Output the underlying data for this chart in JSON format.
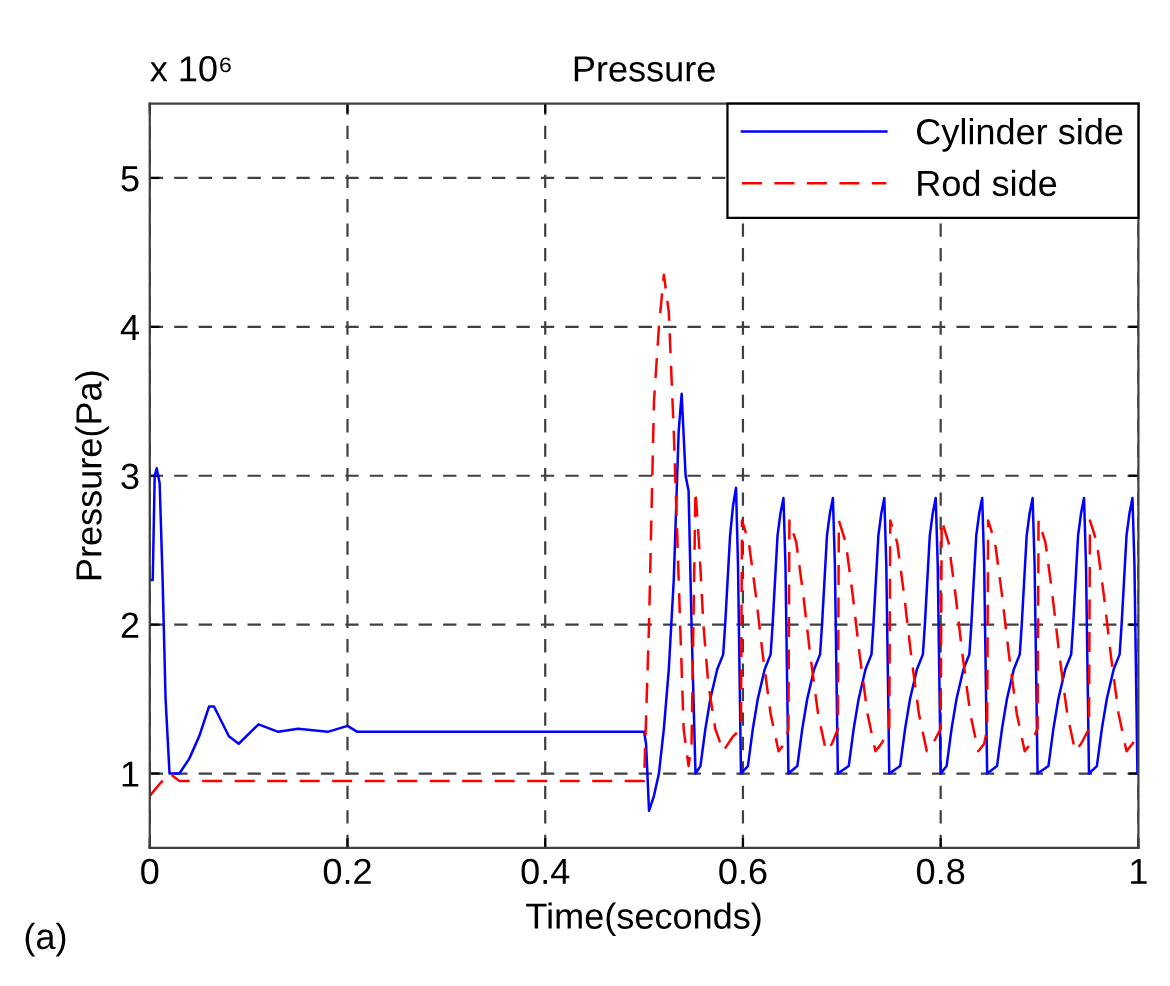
{
  "chart_data": {
    "type": "line",
    "title": "Pressure",
    "xlabel": "Time(seconds)",
    "ylabel": "Pressure(Pa)",
    "annotations": [
      "x 10⁶",
      "(a)"
    ],
    "xlim": [
      0,
      1
    ],
    "xticks": [
      0,
      0.2,
      0.4,
      0.6,
      0.8,
      1
    ],
    "ylim": [
      0.5,
      5.5
    ],
    "yticks": [
      1,
      2,
      3,
      4,
      5
    ],
    "grid": true,
    "legend": "top right",
    "series": [
      {
        "name": "Cylinder side",
        "color": "#0000ff",
        "line_style": "solid",
        "x": [
          0,
          0.003,
          0.005,
          0.007,
          0.01,
          0.013,
          0.016,
          0.02,
          0.03,
          0.04,
          0.05,
          0.06,
          0.065,
          0.08,
          0.09,
          0.11,
          0.13,
          0.15,
          0.18,
          0.2,
          0.21,
          0.5,
          0.502,
          0.505,
          0.51,
          0.515,
          0.52,
          0.525,
          0.53,
          0.535,
          0.538,
          0.542,
          0.545,
          0.548,
          0.552,
          0.557,
          0.562,
          0.567,
          0.574,
          0.58,
          0.582,
          0.587,
          0.59,
          0.593,
          0.595,
          0.598,
          0.605,
          0.61,
          0.615,
          0.622,
          0.628,
          0.63,
          0.635,
          0.638,
          0.641,
          0.643,
          0.646,
          0.655,
          0.66,
          0.665,
          0.672,
          0.678,
          0.68,
          0.685,
          0.688,
          0.691,
          0.693,
          0.696,
          0.707,
          0.712,
          0.717,
          0.724,
          0.73,
          0.732,
          0.737,
          0.74,
          0.743,
          0.745,
          0.748,
          0.759,
          0.764,
          0.769,
          0.776,
          0.782,
          0.784,
          0.789,
          0.792,
          0.795,
          0.797,
          0.8,
          0.806,
          0.811,
          0.816,
          0.823,
          0.829,
          0.831,
          0.836,
          0.839,
          0.842,
          0.844,
          0.847,
          0.857,
          0.862,
          0.867,
          0.874,
          0.88,
          0.882,
          0.887,
          0.89,
          0.893,
          0.895,
          0.898,
          0.909,
          0.914,
          0.919,
          0.926,
          0.932,
          0.934,
          0.939,
          0.942,
          0.945,
          0.947,
          0.95,
          0.958,
          0.963,
          0.968,
          0.975,
          0.981,
          0.983,
          0.988,
          0.991,
          0.994,
          0.996,
          0.999
        ],
        "values": [
          2.3,
          2.3,
          3.0,
          3.05,
          2.95,
          2.3,
          1.5,
          1.0,
          1.0,
          1.1,
          1.25,
          1.45,
          1.45,
          1.25,
          1.2,
          1.33,
          1.28,
          1.3,
          1.28,
          1.32,
          1.28,
          1.28,
          1.2,
          0.75,
          0.85,
          1.0,
          1.3,
          1.7,
          2.3,
          3.3,
          3.55,
          3.0,
          2.9,
          2.0,
          1.0,
          1.05,
          1.3,
          1.5,
          1.7,
          1.8,
          2.0,
          2.6,
          2.8,
          2.92,
          2.4,
          1.0,
          1.05,
          1.3,
          1.5,
          1.7,
          1.8,
          2.0,
          2.6,
          2.75,
          2.85,
          2.4,
          1.0,
          1.05,
          1.3,
          1.5,
          1.7,
          1.8,
          2.0,
          2.6,
          2.75,
          2.85,
          2.4,
          1.0,
          1.05,
          1.3,
          1.5,
          1.7,
          1.8,
          2.0,
          2.6,
          2.75,
          2.85,
          2.4,
          1.0,
          1.05,
          1.3,
          1.5,
          1.7,
          1.8,
          2.0,
          2.6,
          2.75,
          2.85,
          2.4,
          1.0,
          1.05,
          1.3,
          1.5,
          1.7,
          1.8,
          2.0,
          2.6,
          2.75,
          2.85,
          2.4,
          1.0,
          1.05,
          1.3,
          1.5,
          1.7,
          1.8,
          2.0,
          2.6,
          2.75,
          2.85,
          2.4,
          1.0,
          1.05,
          1.3,
          1.5,
          1.7,
          1.8,
          2.0,
          2.6,
          2.75,
          2.85,
          2.4,
          1.0,
          1.05,
          1.3,
          1.5,
          1.7,
          1.8,
          2.0,
          2.6,
          2.75,
          2.85,
          2.4,
          1.0
        ]
      },
      {
        "name": "Rod side",
        "color": "#ff0000",
        "line_style": "dashed",
        "x": [
          0,
          0.01,
          0.02,
          0.03,
          0.5,
          0.505,
          0.51,
          0.515,
          0.52,
          0.525,
          0.53,
          0.535,
          0.54,
          0.545,
          0.548,
          0.552,
          0.556,
          0.56,
          0.565,
          0.572,
          0.58,
          0.59,
          0.598,
          0.599,
          0.606,
          0.613,
          0.62,
          0.628,
          0.636,
          0.642,
          0.646,
          0.647,
          0.654,
          0.661,
          0.668,
          0.676,
          0.684,
          0.69,
          0.696,
          0.697,
          0.704,
          0.711,
          0.718,
          0.726,
          0.734,
          0.74,
          0.748,
          0.749,
          0.756,
          0.763,
          0.77,
          0.778,
          0.786,
          0.792,
          0.8,
          0.801,
          0.808,
          0.815,
          0.822,
          0.83,
          0.838,
          0.844,
          0.847,
          0.848,
          0.855,
          0.862,
          0.869,
          0.877,
          0.885,
          0.891,
          0.898,
          0.899,
          0.906,
          0.913,
          0.92,
          0.928,
          0.936,
          0.942,
          0.95,
          0.951,
          0.958,
          0.965,
          0.972,
          0.98,
          0.988,
          0.994,
          0.999
        ],
        "values": [
          0.85,
          0.93,
          1.0,
          0.95,
          0.95,
          2.0,
          3.5,
          4.0,
          4.35,
          4.1,
          3.3,
          2.3,
          1.3,
          1.05,
          1.2,
          2.9,
          2.5,
          2.0,
          1.6,
          1.3,
          1.15,
          1.25,
          1.3,
          2.7,
          2.55,
          2.2,
          1.8,
          1.4,
          1.15,
          1.2,
          1.3,
          2.7,
          2.55,
          2.2,
          1.8,
          1.4,
          1.15,
          1.2,
          1.3,
          2.7,
          2.55,
          2.2,
          1.8,
          1.4,
          1.15,
          1.2,
          1.3,
          2.7,
          2.55,
          2.2,
          1.8,
          1.4,
          1.15,
          1.2,
          1.3,
          2.7,
          2.55,
          2.2,
          1.8,
          1.4,
          1.15,
          1.2,
          1.3,
          2.7,
          2.55,
          2.2,
          1.8,
          1.4,
          1.15,
          1.2,
          1.3,
          2.7,
          2.55,
          2.2,
          1.8,
          1.4,
          1.15,
          1.2,
          1.3,
          2.7,
          2.55,
          2.2,
          1.8,
          1.4,
          1.15,
          1.2,
          1.25
        ]
      }
    ]
  }
}
